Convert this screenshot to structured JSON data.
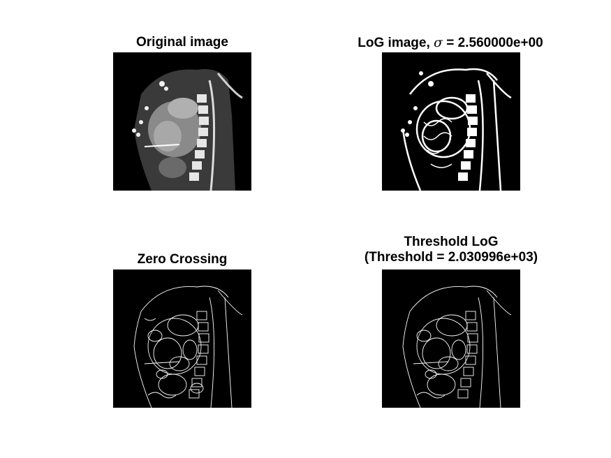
{
  "panels": {
    "original": {
      "title": "Original image"
    },
    "log": {
      "title_prefix": "LoG image, ",
      "sigma_symbol": "σ",
      "title_suffix": " = 2.560000e+00"
    },
    "zero": {
      "title": "Zero Crossing"
    },
    "threshold": {
      "title_line1": "Threshold LoG",
      "title_line2": "(Threshold = 2.030996e+03)"
    }
  },
  "colors": {
    "background": "#ffffff",
    "image_bg": "#000000",
    "edge": "#ffffff",
    "tissue": "#9a9a9a"
  }
}
